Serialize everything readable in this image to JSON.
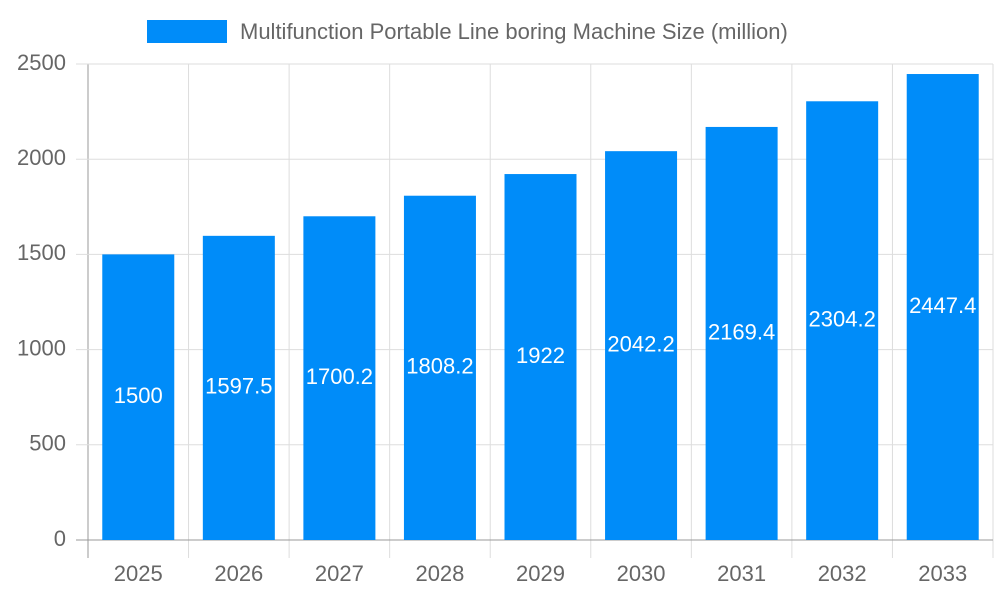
{
  "chart_data": {
    "type": "bar",
    "categories": [
      "2025",
      "2026",
      "2027",
      "2028",
      "2029",
      "2030",
      "2031",
      "2032",
      "2033"
    ],
    "series": [
      {
        "name": "Multifunction Portable Line boring Machine Size (million)",
        "color": "#008cf9",
        "values": [
          1500,
          1597.5,
          1700.2,
          1808.2,
          1922,
          2042.2,
          2169.4,
          2304.2,
          2447.4
        ]
      }
    ],
    "ylim": [
      0,
      2500
    ],
    "yticks": [
      0,
      500,
      1000,
      1500,
      2000,
      2500
    ],
    "grid": true
  }
}
